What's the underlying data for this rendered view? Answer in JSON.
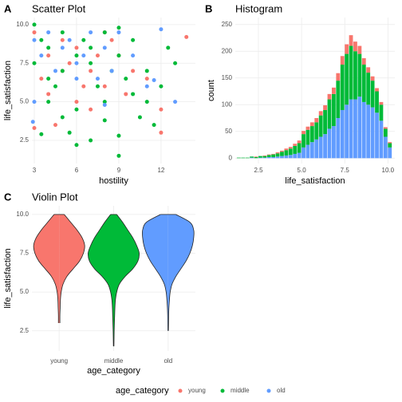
{
  "chart_data": [
    {
      "type": "scatter",
      "tag": "A",
      "title": "Scatter Plot",
      "x_label": "hostility",
      "y_label": "life_satisfaction",
      "xlim": [
        2.83,
        14.44
      ],
      "ylim": [
        1.0,
        10.46
      ],
      "xticks": [
        3,
        6,
        9,
        12
      ],
      "yticks": [
        2.5,
        {
          "value": 5,
          "label": "5.0"
        },
        7.5,
        {
          "value": 10,
          "label": "10.0"
        }
      ],
      "grid": true,
      "series": [
        {
          "name": "young",
          "color": "#F8766D",
          "x": [
            3,
            3.5,
            4,
            4,
            5,
            5,
            6,
            6.5,
            7,
            7,
            8,
            8,
            9,
            9.5,
            10,
            11,
            12,
            13.8,
            3,
            4.5,
            6,
            7.5,
            8.5,
            5.5,
            12
          ],
          "y": [
            9.5,
            6.5,
            8,
            5.5,
            9,
            7,
            8.5,
            6,
            7,
            4.5,
            9.5,
            6,
            8,
            5.5,
            7,
            6.5,
            3.0,
            9.2,
            3.3,
            3.5,
            5,
            8,
            9,
            7.5,
            4.5
          ]
        },
        {
          "name": "middle",
          "color": "#00BA38",
          "x": [
            3,
            3,
            3.5,
            4,
            4,
            4.5,
            5,
            5,
            5.5,
            6,
            6,
            6.5,
            7,
            7,
            7.5,
            8,
            8,
            8.5,
            9,
            9,
            9.5,
            10,
            10.5,
            11,
            11.5,
            12,
            12.5,
            13,
            3.5,
            5,
            6,
            7,
            8,
            9,
            4,
            9,
            10,
            11
          ],
          "y": [
            10,
            7.5,
            9,
            8.5,
            5,
            6,
            9.5,
            7,
            3,
            8,
            4.5,
            9,
            7.5,
            2.5,
            6,
            9.5,
            5,
            7,
            8,
            1.5,
            6.5,
            5.5,
            4,
            7,
            3.5,
            6,
            8.5,
            7.5,
            2.9,
            4,
            2.2,
            8.5,
            3.8,
            2.8,
            6.5,
            9.8,
            9,
            5
          ]
        },
        {
          "name": "old",
          "color": "#619CFF",
          "x": [
            3,
            3.5,
            4,
            4.5,
            5,
            5.5,
            6,
            6.5,
            7,
            7.5,
            8,
            8.5,
            9,
            10,
            11,
            12,
            3,
            6,
            8,
            11.5,
            13,
            2.9
          ],
          "y": [
            9,
            8,
            9.5,
            7,
            8.5,
            9,
            7.5,
            8,
            9.5,
            6.5,
            8.5,
            7,
            9.5,
            8,
            6,
            9.7,
            5,
            6.5,
            4.8,
            6.4,
            5,
            3.7
          ]
        }
      ]
    },
    {
      "type": "histogram",
      "tag": "B",
      "title": "Histogram",
      "x_label": "life_satisfaction",
      "y_label": "count",
      "xlim": [
        1.16,
        10.4
      ],
      "ylim": [
        -10,
        263
      ],
      "xticks": [
        2.5,
        {
          "value": 5,
          "label": "5.0"
        },
        7.5,
        {
          "value": 10,
          "label": "10.0"
        }
      ],
      "yticks": [
        0,
        50,
        100,
        150,
        200,
        250
      ],
      "grid": true,
      "bins": [
        1.25,
        1.5,
        1.75,
        2,
        2.25,
        2.5,
        2.75,
        3,
        3.25,
        3.5,
        3.75,
        4,
        4.25,
        4.5,
        4.75,
        5,
        5.25,
        5.5,
        5.75,
        6,
        6.25,
        6.5,
        6.75,
        7,
        7.25,
        7.5,
        7.75,
        8,
        8.25,
        8.5,
        8.75,
        9,
        9.25,
        9.5,
        9.75,
        10,
        10.25
      ],
      "series": [
        {
          "name": "young",
          "color": "#F8766D",
          "values": [
            0,
            0,
            0,
            0,
            1,
            0,
            1,
            1,
            1,
            2,
            2,
            3,
            3,
            4,
            5,
            6,
            6,
            7,
            8,
            8,
            9,
            10,
            12,
            14,
            16,
            18,
            20,
            18,
            15,
            12,
            10,
            8,
            6,
            5,
            3,
            2
          ]
        },
        {
          "name": "middle",
          "color": "#00BA38",
          "values": [
            1,
            1,
            1,
            2,
            2,
            3,
            3,
            4,
            5,
            6,
            8,
            10,
            12,
            15,
            18,
            25,
            28,
            30,
            32,
            40,
            45,
            55,
            60,
            70,
            85,
            95,
            100,
            90,
            80,
            70,
            60,
            50,
            40,
            30,
            15,
            8
          ]
        },
        {
          "name": "old",
          "color": "#619CFF",
          "values": [
            0,
            0,
            0,
            1,
            0,
            1,
            1,
            2,
            2,
            3,
            4,
            5,
            6,
            8,
            10,
            20,
            25,
            30,
            35,
            40,
            45,
            55,
            60,
            75,
            90,
            100,
            110,
            110,
            115,
            105,
            100,
            95,
            85,
            70,
            40,
            20
          ]
        }
      ]
    },
    {
      "type": "violin",
      "tag": "C",
      "title": "Violin Plot",
      "x_label": "age_category",
      "y_label": "life_satisfaction",
      "ylim": [
        1.2,
        10.56
      ],
      "yticks": [
        2.5,
        {
          "value": 5,
          "label": "5.0"
        },
        7.5,
        {
          "value": 10,
          "label": "10.0"
        }
      ],
      "grid": true,
      "categories": [
        "young",
        "middle",
        "old"
      ],
      "colors": [
        "#F8766D",
        "#00BA38",
        "#619CFF"
      ],
      "y": [
        1.5,
        2,
        2.5,
        3,
        3.5,
        4,
        4.5,
        5,
        5.5,
        6,
        6.5,
        7,
        7.5,
        8,
        8.5,
        9,
        9.5,
        10
      ],
      "densities": [
        [
          null,
          null,
          null,
          0.03,
          0.03,
          0.04,
          0.05,
          0.08,
          0.15,
          0.3,
          0.55,
          0.8,
          0.95,
          1.0,
          0.9,
          0.7,
          0.45,
          0.2
        ],
        [
          0.01,
          0.015,
          0.02,
          0.03,
          0.04,
          0.05,
          0.07,
          0.12,
          0.22,
          0.45,
          0.75,
          0.95,
          1.0,
          0.9,
          0.75,
          0.55,
          0.35,
          0.12
        ],
        [
          null,
          null,
          0.01,
          0.015,
          0.02,
          0.03,
          0.05,
          0.08,
          0.15,
          0.3,
          0.5,
          0.7,
          0.85,
          0.95,
          1.0,
          1.0,
          0.85,
          0.3
        ]
      ]
    }
  ],
  "legend": {
    "title": "age_category"
  }
}
